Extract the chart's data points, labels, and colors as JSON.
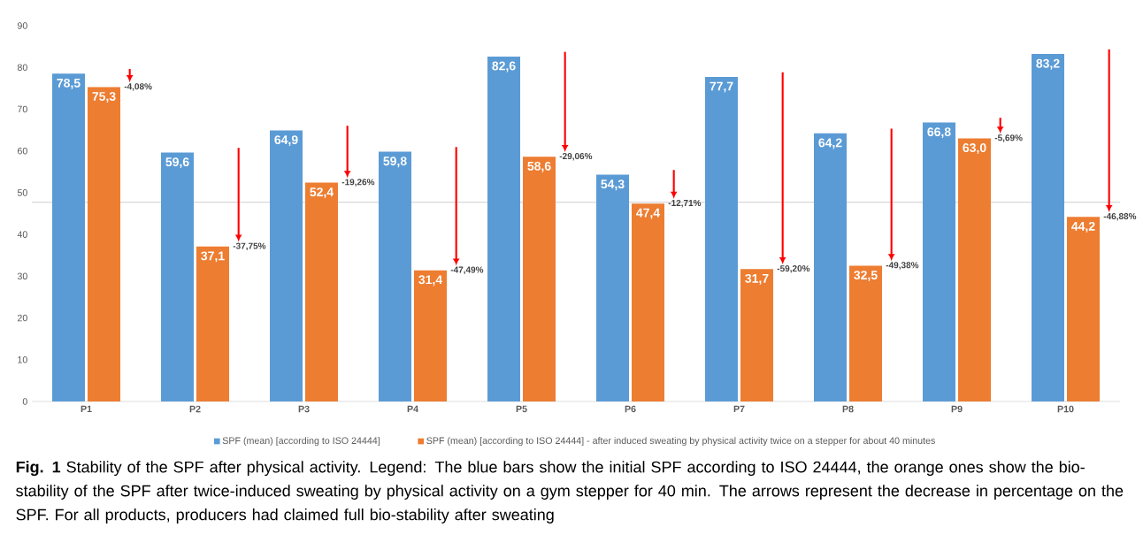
{
  "chart_data": {
    "type": "bar",
    "categories": [
      "P1",
      "P2",
      "P3",
      "P4",
      "P5",
      "P6",
      "P7",
      "P8",
      "P9",
      "P10"
    ],
    "series": [
      {
        "name": "SPF (mean) [according to ISO 24444]",
        "color": "#5b9bd5",
        "values": [
          78.5,
          59.6,
          64.9,
          59.8,
          82.6,
          54.3,
          77.7,
          64.2,
          66.8,
          83.2
        ],
        "value_labels": [
          "78,5",
          "59,6",
          "64,9",
          "59,8",
          "82,6",
          "54,3",
          "77,7",
          "64,2",
          "66,8",
          "83,2"
        ]
      },
      {
        "name": "SPF (mean) [according to ISO 24444] - after induced sweating by physical activity twice on a stepper for about 40 minutes",
        "color": "#ed7d31",
        "values": [
          75.3,
          37.1,
          52.4,
          31.4,
          58.6,
          47.4,
          31.7,
          32.5,
          63.0,
          44.2
        ],
        "value_labels": [
          "75,3",
          "37,1",
          "52,4",
          "31,4",
          "58,6",
          "47,4",
          "31,7",
          "32,5",
          "63,0",
          "44,2"
        ]
      }
    ],
    "ylim": [
      0,
      90
    ],
    "yticks": [
      0,
      10,
      20,
      30,
      40,
      50,
      60,
      70,
      80,
      90
    ],
    "grid": false,
    "legend": "bottom",
    "ref_lines": [
      {
        "axis": "y",
        "value": 47.7,
        "color": "#c0c0c0"
      }
    ],
    "annotations": [
      "-4,08%",
      "-37,75%",
      "-19,26%",
      "-47,49%",
      "-29,06%",
      "-12,71%",
      "-59,20%",
      "-49,38%",
      "-5,69%",
      "-46,88%",
      "**Fig. 1** Stability of the SPF after physical activity. Legend: The blue bars show the initial SPF according to ISO 24444, the orange ones show the bio-stability of the SPF after twice-induced sweating by physical activity on a gym stepper for 40 min. The arrows represent the decrease in percentage on the SPF. For all products, producers had claimed full bio-stability after sweating"
    ]
  }
}
